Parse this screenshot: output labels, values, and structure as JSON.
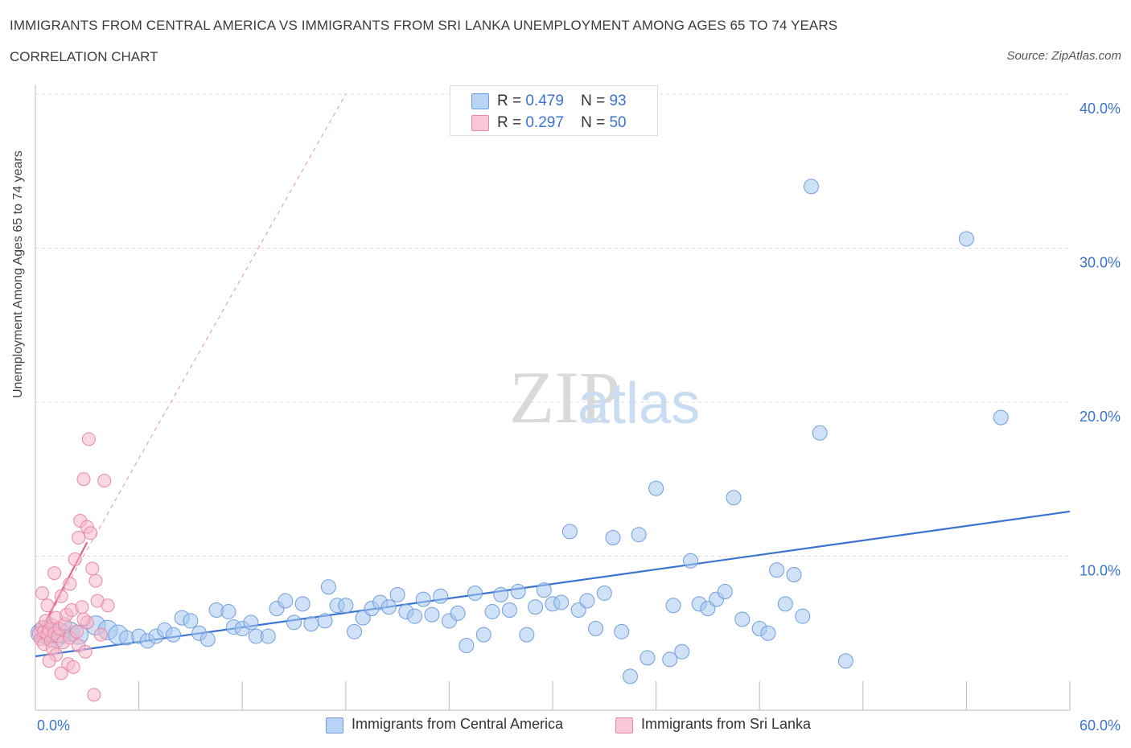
{
  "header": {
    "title": "IMMIGRANTS FROM CENTRAL AMERICA VS IMMIGRANTS FROM SRI LANKA UNEMPLOYMENT AMONG AGES 65 TO 74 YEARS",
    "subtitle": "CORRELATION CHART",
    "source": "Source: ZipAtlas.com"
  },
  "legend": {
    "rows": [
      {
        "r_label": "R =",
        "r_value": "0.479",
        "n_label": "N =",
        "n_value": "93"
      },
      {
        "r_label": "R =",
        "r_value": "0.297",
        "n_label": "N =",
        "n_value": "50"
      }
    ]
  },
  "watermark": {
    "zip": "ZIP",
    "atlas": "atlas"
  },
  "colors": {
    "blue_fill": "#a8c8f0",
    "blue_stroke": "#6f9ede",
    "blue_line": "#3a74d0",
    "pink_fill": "#f5b8ca",
    "pink_stroke": "#e888a5",
    "pink_line": "#e5608a",
    "axis_text": "#3a74d0",
    "grid": "#dddddd"
  },
  "chart_data": {
    "type": "scatter",
    "xlabel": "",
    "ylabel": "Unemployment Among Ages 65 to 74 years",
    "xlim": [
      0,
      60
    ],
    "ylim": [
      0,
      40
    ],
    "x_tick_labels": [
      "0.0%",
      "60.0%"
    ],
    "y_tick_labels": [
      "10.0%",
      "20.0%",
      "30.0%",
      "40.0%"
    ],
    "y_ticks": [
      10,
      20,
      30,
      40
    ],
    "grid": true,
    "legend_position": "top-center and bottom",
    "series": [
      {
        "name": "Immigrants from Central America",
        "color": "#a8c8f0",
        "trend": {
          "x": [
            0,
            60
          ],
          "y": [
            3.5,
            12.9
          ]
        },
        "points": [
          [
            0.3,
            5.0
          ],
          [
            0.5,
            5.2
          ],
          [
            0.8,
            4.8
          ],
          [
            1.0,
            5.1
          ],
          [
            1.2,
            4.7
          ],
          [
            1.5,
            5.0
          ],
          [
            2.0,
            5.1
          ],
          [
            2.5,
            4.9
          ],
          [
            3.5,
            5.5
          ],
          [
            4.2,
            5.2
          ],
          [
            4.8,
            4.9
          ],
          [
            5.3,
            4.7
          ],
          [
            6.0,
            4.8
          ],
          [
            6.5,
            4.5
          ],
          [
            7.0,
            4.8
          ],
          [
            7.5,
            5.2
          ],
          [
            8.0,
            4.9
          ],
          [
            8.5,
            6.0
          ],
          [
            9.0,
            5.8
          ],
          [
            9.5,
            5.0
          ],
          [
            10.0,
            4.6
          ],
          [
            10.5,
            6.5
          ],
          [
            11.2,
            6.4
          ],
          [
            11.5,
            5.4
          ],
          [
            12.0,
            5.3
          ],
          [
            12.5,
            5.7
          ],
          [
            12.8,
            4.8
          ],
          [
            13.5,
            4.8
          ],
          [
            14.0,
            6.6
          ],
          [
            14.5,
            7.1
          ],
          [
            15.0,
            5.7
          ],
          [
            15.5,
            6.9
          ],
          [
            16.0,
            5.6
          ],
          [
            16.8,
            5.8
          ],
          [
            17.0,
            8.0
          ],
          [
            17.5,
            6.8
          ],
          [
            18.0,
            6.8
          ],
          [
            18.5,
            5.1
          ],
          [
            19.0,
            6.0
          ],
          [
            19.5,
            6.6
          ],
          [
            20.0,
            7.0
          ],
          [
            20.5,
            6.7
          ],
          [
            21.0,
            7.5
          ],
          [
            21.5,
            6.4
          ],
          [
            22.0,
            6.1
          ],
          [
            22.5,
            7.2
          ],
          [
            23.0,
            6.2
          ],
          [
            23.5,
            7.4
          ],
          [
            24.0,
            5.8
          ],
          [
            24.5,
            6.3
          ],
          [
            25.0,
            4.2
          ],
          [
            25.5,
            7.6
          ],
          [
            26.0,
            4.9
          ],
          [
            26.5,
            6.4
          ],
          [
            27.0,
            7.5
          ],
          [
            27.5,
            6.5
          ],
          [
            28.0,
            7.7
          ],
          [
            28.5,
            4.9
          ],
          [
            29.0,
            6.7
          ],
          [
            29.5,
            7.8
          ],
          [
            30.0,
            6.9
          ],
          [
            30.5,
            7.0
          ],
          [
            31.0,
            11.6
          ],
          [
            31.5,
            6.5
          ],
          [
            32.0,
            7.1
          ],
          [
            32.5,
            5.3
          ],
          [
            33.0,
            7.6
          ],
          [
            33.5,
            11.2
          ],
          [
            34.0,
            5.1
          ],
          [
            34.5,
            2.2
          ],
          [
            35.0,
            11.4
          ],
          [
            35.5,
            3.4
          ],
          [
            36.0,
            14.4
          ],
          [
            36.8,
            3.3
          ],
          [
            37.0,
            6.8
          ],
          [
            37.5,
            3.8
          ],
          [
            38.0,
            9.7
          ],
          [
            38.5,
            6.9
          ],
          [
            39.0,
            6.6
          ],
          [
            39.5,
            7.2
          ],
          [
            40.0,
            7.7
          ],
          [
            40.5,
            13.8
          ],
          [
            41.0,
            5.9
          ],
          [
            42.0,
            5.3
          ],
          [
            42.5,
            5.0
          ],
          [
            43.0,
            9.1
          ],
          [
            43.5,
            6.9
          ],
          [
            44.0,
            8.8
          ],
          [
            44.5,
            6.1
          ],
          [
            45.0,
            34.0
          ],
          [
            45.5,
            18.0
          ],
          [
            47.0,
            3.2
          ],
          [
            54.0,
            30.6
          ],
          [
            56.0,
            19.0
          ]
        ]
      },
      {
        "name": "Immigrants from Sri Lanka",
        "color": "#f5b8ca",
        "trend_solid": {
          "x": [
            0,
            3.0
          ],
          "y": [
            4.5,
            10.9
          ]
        },
        "trend_dashed": {
          "x": [
            0,
            18.0
          ],
          "y": [
            4.5,
            40.0
          ]
        },
        "points": [
          [
            0.2,
            5.0
          ],
          [
            0.3,
            4.6
          ],
          [
            0.4,
            5.4
          ],
          [
            0.5,
            5.1
          ],
          [
            0.5,
            4.3
          ],
          [
            0.6,
            5.8
          ],
          [
            0.7,
            4.9
          ],
          [
            0.7,
            6.8
          ],
          [
            0.8,
            5.2
          ],
          [
            0.9,
            4.5
          ],
          [
            1.0,
            5.5
          ],
          [
            1.0,
            4.0
          ],
          [
            1.1,
            5.0
          ],
          [
            1.2,
            6.0
          ],
          [
            1.2,
            3.6
          ],
          [
            1.3,
            4.8
          ],
          [
            1.4,
            5.3
          ],
          [
            1.5,
            7.4
          ],
          [
            1.6,
            4.4
          ],
          [
            1.7,
            5.6
          ],
          [
            1.8,
            6.2
          ],
          [
            1.9,
            3.0
          ],
          [
            2.0,
            8.2
          ],
          [
            2.0,
            4.7
          ],
          [
            2.1,
            6.5
          ],
          [
            2.2,
            2.8
          ],
          [
            2.3,
            9.8
          ],
          [
            2.4,
            5.1
          ],
          [
            2.5,
            11.2
          ],
          [
            2.5,
            4.2
          ],
          [
            2.6,
            12.3
          ],
          [
            2.7,
            6.7
          ],
          [
            2.8,
            15.0
          ],
          [
            2.9,
            3.8
          ],
          [
            3.0,
            11.9
          ],
          [
            3.0,
            5.7
          ],
          [
            3.1,
            17.6
          ],
          [
            3.2,
            11.5
          ],
          [
            3.3,
            9.2
          ],
          [
            3.4,
            1.0
          ],
          [
            3.5,
            8.4
          ],
          [
            3.6,
            7.1
          ],
          [
            3.8,
            4.9
          ],
          [
            4.0,
            14.9
          ],
          [
            4.2,
            6.8
          ],
          [
            0.8,
            3.2
          ],
          [
            1.5,
            2.4
          ],
          [
            2.8,
            5.9
          ],
          [
            0.4,
            7.6
          ],
          [
            1.1,
            8.9
          ]
        ]
      }
    ]
  },
  "bottom_legend": {
    "items": [
      "Immigrants from Central America",
      "Immigrants from Sri Lanka"
    ]
  }
}
